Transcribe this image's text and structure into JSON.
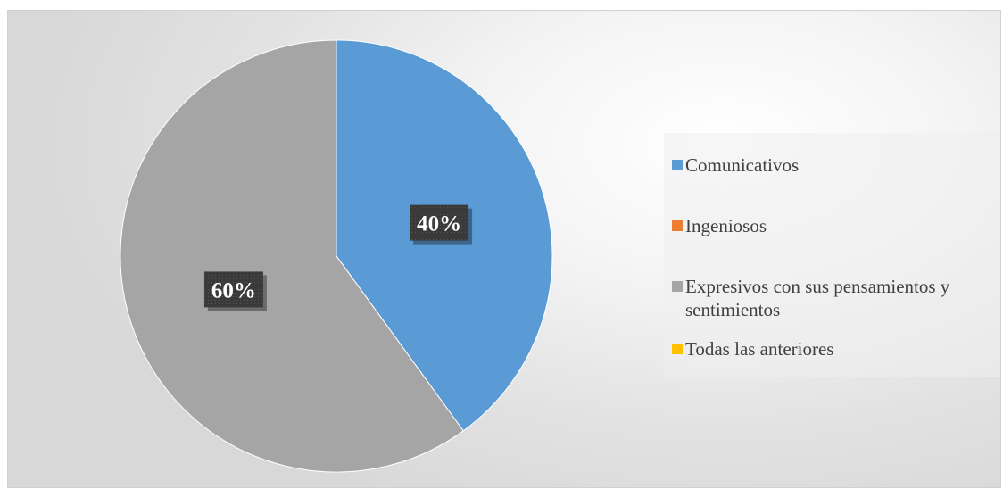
{
  "chart_data": {
    "type": "pie",
    "slices": [
      {
        "label": "Comunicativos",
        "value": 40,
        "value_label": "40%",
        "color": "#5B9BD5"
      },
      {
        "label": "Ingeniosos",
        "value": 0,
        "value_label": "",
        "color": "#ED7D31"
      },
      {
        "label": "Expresivos con sus pensamientos y sentimientos",
        "value": 60,
        "value_label": "60%",
        "color": "#A5A5A5"
      },
      {
        "label": "Todas las anteriores",
        "value": 0,
        "value_label": "",
        "color": "#FFC000"
      }
    ],
    "legend_position": "right",
    "title": ""
  }
}
